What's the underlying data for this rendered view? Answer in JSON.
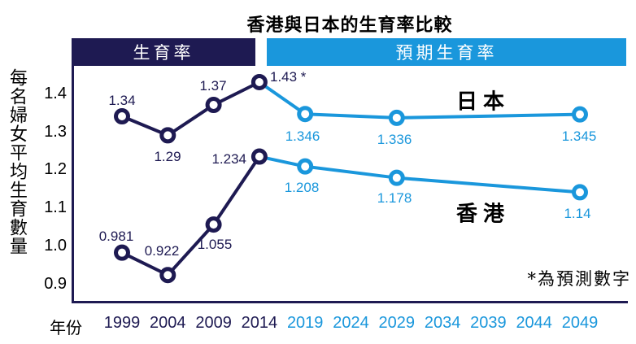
{
  "title": "香港與日本的生育率比較",
  "bands": {
    "actual_label": "生育率",
    "projected_label": "預期生育率"
  },
  "note": "*為預測數字",
  "colors": {
    "actual_navy": "#1e1a52",
    "projected_blue": "#1a97dc",
    "text_black": "#000000",
    "background": "#ffffff",
    "band_text": "#ffffff"
  },
  "chart_data": {
    "type": "line",
    "title": "香港與日本的生育率比較",
    "xlabel": "年份",
    "ylabel": "每名婦女平均生育數量",
    "x_ticks": [
      "1999",
      "2004",
      "2009",
      "2014",
      "2019",
      "2024",
      "2029",
      "2034",
      "2039",
      "2044",
      "2049"
    ],
    "actual_tick_count": 4,
    "y_ticks": [
      "1.4",
      "1.3",
      "1.2",
      "1.1",
      "1.0",
      "0.9"
    ],
    "ylim": [
      0.87,
      1.47
    ],
    "grid": false,
    "legend_position": "inline-labels",
    "segment_bands": [
      {
        "label": "生育率",
        "range": [
          "1999",
          "2014"
        ],
        "color": "#1e1a52"
      },
      {
        "label": "預期生育率",
        "range": [
          "2019",
          "2049"
        ],
        "color": "#1a97dc"
      }
    ],
    "series": [
      {
        "name": "日本",
        "x": [
          1999,
          2004,
          2009,
          2014,
          2019,
          2029,
          2049
        ],
        "values": [
          1.34,
          1.29,
          1.37,
          1.43,
          1.346,
          1.336,
          1.345
        ],
        "point_labels": [
          "1.34",
          "1.29",
          "1.37",
          "1.43 *",
          "1.346",
          "1.336",
          "1.345"
        ],
        "actual_count": 4
      },
      {
        "name": "香港",
        "x": [
          1999,
          2004,
          2009,
          2014,
          2019,
          2029,
          2049
        ],
        "values": [
          0.981,
          0.922,
          1.055,
          1.234,
          1.208,
          1.178,
          1.14
        ],
        "point_labels": [
          "0.981",
          "0.922",
          "1.055",
          "1.234",
          "1.208",
          "1.178",
          "1.14"
        ],
        "actual_count": 4
      }
    ],
    "note": "*為預測數字"
  }
}
